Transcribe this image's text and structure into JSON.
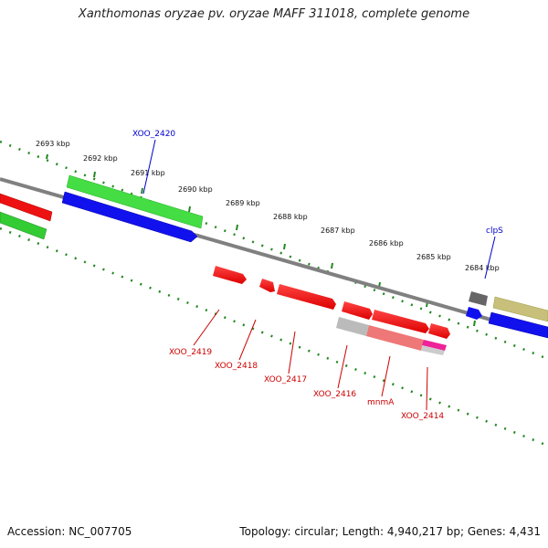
{
  "title": "Xanthomonas oryzae pv. oryzae MAFF 311018, complete genome",
  "footer": {
    "accession": "Accession: NC_007705",
    "topology": "Topology: circular; Length: 4,940,217 bp; Genes: 4,431"
  },
  "scale_labels": [
    "2693 kbp",
    "2692 kbp",
    "2691 kbp",
    "2690 kbp",
    "2689 kbp",
    "2688 kbp",
    "2687 kbp",
    "2686 kbp",
    "2685 kbp",
    "2684 kbp"
  ],
  "genes": {
    "top": [
      {
        "name": "XOO_2420",
        "color": "#0000cc"
      },
      {
        "name": "clpS",
        "color": "#0000cc"
      }
    ],
    "bottom": [
      {
        "name": "XOO_2419",
        "color": "#cc0000"
      },
      {
        "name": "XOO_2418",
        "color": "#cc0000"
      },
      {
        "name": "XOO_2417",
        "color": "#cc0000"
      },
      {
        "name": "XOO_2416",
        "color": "#cc0000"
      },
      {
        "name": "mnmA",
        "color": "#cc0000"
      },
      {
        "name": "XOO_2414",
        "color": "#cc0000"
      }
    ]
  },
  "colors": {
    "backbone": "#808080",
    "cds_red": "#ee1111",
    "gene_blue": "#1111ee",
    "green": "#33cc33",
    "olive": "#c8c07a",
    "grey": "#bbbbbb",
    "pink": "#ee6699",
    "tick": "#228822"
  }
}
